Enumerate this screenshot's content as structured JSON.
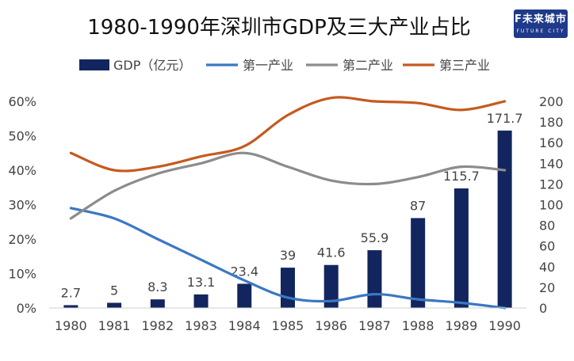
{
  "colors": {
    "gdp": "#12255e",
    "primary": "#3a78c3",
    "secondary": "#8c8c8c",
    "tertiary": "#c55a1f"
  },
  "logo": {
    "main": "F未来城市",
    "sub": "FUTURE CITY"
  },
  "chart_data": {
    "type": "bar+line",
    "title": "1980-1990年深圳市GDP及三大产业占比",
    "categories": [
      "1980",
      "1981",
      "1982",
      "1983",
      "1984",
      "1985",
      "1986",
      "1987",
      "1988",
      "1989",
      "1990"
    ],
    "bar_series": {
      "name": "GDP（亿元）",
      "axis": "right",
      "values": [
        2.7,
        5,
        8.3,
        13.1,
        23.4,
        39,
        41.6,
        55.9,
        87,
        115.7,
        171.7
      ],
      "labels": [
        "2.7",
        "5",
        "8.3",
        "13.1",
        "23.4",
        "39",
        "41.6",
        "55.9",
        "87",
        "115.7",
        "171.7"
      ]
    },
    "line_series": [
      {
        "name": "第一产业",
        "axis": "left",
        "values": [
          29,
          26,
          20,
          14,
          8,
          3,
          2,
          4,
          2.5,
          1.5,
          0
        ]
      },
      {
        "name": "第二产业",
        "axis": "left",
        "values": [
          26,
          34,
          39,
          42,
          45,
          41,
          37,
          36,
          38,
          41,
          40
        ]
      },
      {
        "name": "第三产业",
        "axis": "left",
        "values": [
          45,
          40,
          41,
          44,
          47,
          56,
          61,
          60,
          59.5,
          57.5,
          60
        ]
      }
    ],
    "left_axis": {
      "min": 0,
      "max": 60,
      "ticks": [
        "0%",
        "10%",
        "20%",
        "30%",
        "40%",
        "50%",
        "60%"
      ]
    },
    "right_axis": {
      "min": 0,
      "max": 200,
      "ticks": [
        "0",
        "20",
        "40",
        "60",
        "80",
        "100",
        "120",
        "140",
        "160",
        "180",
        "200"
      ]
    },
    "legend_position": "top",
    "grid": false
  }
}
